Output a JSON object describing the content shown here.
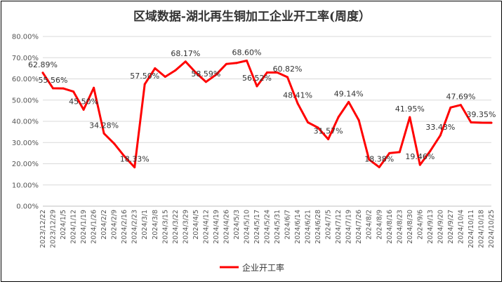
{
  "colors": {
    "series": "#ff0000",
    "grid": "#d9d9d9",
    "axis": "#bfbfbf"
  },
  "chart_data": {
    "type": "line",
    "title": "区域数据-湖北再生铜加工企业开工率(周度）",
    "xlabel": "",
    "ylabel": "",
    "ylim": [
      0,
      80
    ],
    "y_ticks": [
      "0.00%",
      "10.00%",
      "20.00%",
      "30.00%",
      "40.00%",
      "50.00%",
      "60.00%",
      "70.00%",
      "80.00%"
    ],
    "grid": true,
    "legend_position": "bottom",
    "x": [
      "2023/12/22",
      "2023/12/29",
      "2024/1/5",
      "2024/1/12",
      "2024/1/19",
      "2024/1/26",
      "2024/2/2",
      "2024/2/9",
      "2024/2/16",
      "2024/2/23",
      "2024/3/1",
      "2024/3/8",
      "2024/3/15",
      "2024/3/22",
      "2024/3/29",
      "2024/4/5",
      "2024/4/12",
      "2024/4/19",
      "2024/4/26",
      "2024/5/3",
      "2024/5/10",
      "2024/5/17",
      "2024/5/24",
      "2024/5/31",
      "2024/6/7",
      "2024/6/14",
      "2024/6/21",
      "2024/6/28",
      "2024/7/5",
      "2024/7/12",
      "2024/7/19",
      "2024/7/26",
      "2024/8/2",
      "2024/8/9",
      "2024/8/16",
      "2024/8/23",
      "2024/8/30",
      "2024/9/6",
      "2024/9/13",
      "2024/9/20",
      "2024/9/27",
      "2024/10/4",
      "2024/10/11",
      "2024/10/18",
      "2024/10/25"
    ],
    "series": [
      {
        "name": "企业开工率",
        "values": [
          62.89,
          55.56,
          55.5,
          54.0,
          45.5,
          55.8,
          34.28,
          29.5,
          23.5,
          18.33,
          57.5,
          65.0,
          61.0,
          64.0,
          68.17,
          63.0,
          58.59,
          62.0,
          67.0,
          67.5,
          68.6,
          56.52,
          63.0,
          63.0,
          60.82,
          48.41,
          39.5,
          37.0,
          31.57,
          42.0,
          49.14,
          40.5,
          22.0,
          18.38,
          25.0,
          25.5,
          41.95,
          19.46,
          26.0,
          33.43,
          46.5,
          47.69,
          39.5,
          39.35,
          39.3
        ]
      }
    ],
    "data_labels": [
      {
        "i": 0,
        "text": "62.89%"
      },
      {
        "i": 1,
        "text": "55.56%"
      },
      {
        "i": 4,
        "text": "45.50%"
      },
      {
        "i": 6,
        "text": "34.28%"
      },
      {
        "i": 9,
        "text": "18.33%"
      },
      {
        "i": 10,
        "text": "57.50%"
      },
      {
        "i": 14,
        "text": "68.17%"
      },
      {
        "i": 16,
        "text": "58.59%"
      },
      {
        "i": 20,
        "text": "68.60%"
      },
      {
        "i": 21,
        "text": "56.52%"
      },
      {
        "i": 24,
        "text": "60.82%"
      },
      {
        "i": 25,
        "text": "48.41%"
      },
      {
        "i": 28,
        "text": "31.57%"
      },
      {
        "i": 30,
        "text": "49.14%"
      },
      {
        "i": 33,
        "text": "18.38%"
      },
      {
        "i": 36,
        "text": "41.95%"
      },
      {
        "i": 37,
        "text": "19.46%"
      },
      {
        "i": 39,
        "text": "33.43%"
      },
      {
        "i": 41,
        "text": "47.69%"
      },
      {
        "i": 43,
        "text": "39.35%"
      }
    ]
  }
}
